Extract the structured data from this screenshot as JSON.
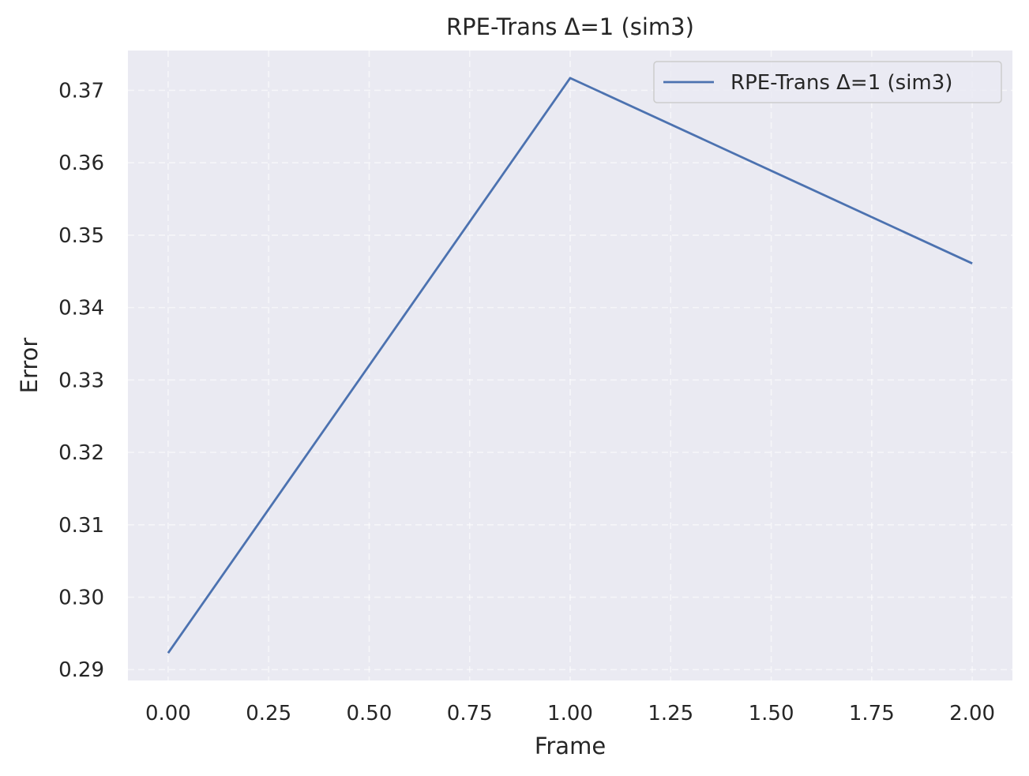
{
  "chart_data": {
    "type": "line",
    "title": "RPE-Trans Δ=1 (sim3)",
    "xlabel": "Frame",
    "ylabel": "Error",
    "xlim": [
      -0.1,
      2.1
    ],
    "ylim": [
      0.2885,
      0.3755
    ],
    "grid": true,
    "x_ticks": [
      0.0,
      0.25,
      0.5,
      0.75,
      1.0,
      1.25,
      1.5,
      1.75,
      2.0
    ],
    "x_tick_labels": [
      "0.00",
      "0.25",
      "0.50",
      "0.75",
      "1.00",
      "1.25",
      "1.50",
      "1.75",
      "2.00"
    ],
    "y_ticks": [
      0.29,
      0.3,
      0.31,
      0.32,
      0.33,
      0.34,
      0.35,
      0.36,
      0.37
    ],
    "y_tick_labels": [
      "0.29",
      "0.30",
      "0.31",
      "0.32",
      "0.33",
      "0.34",
      "0.35",
      "0.36",
      "0.37"
    ],
    "legend_position": "upper-right",
    "series": [
      {
        "name": "RPE-Trans Δ=1 (sim3)",
        "color": "#4c72b0",
        "x": [
          0,
          1,
          2
        ],
        "y": [
          0.2923,
          0.3717,
          0.3461
        ]
      }
    ],
    "background_color": "#eaeaf2"
  }
}
